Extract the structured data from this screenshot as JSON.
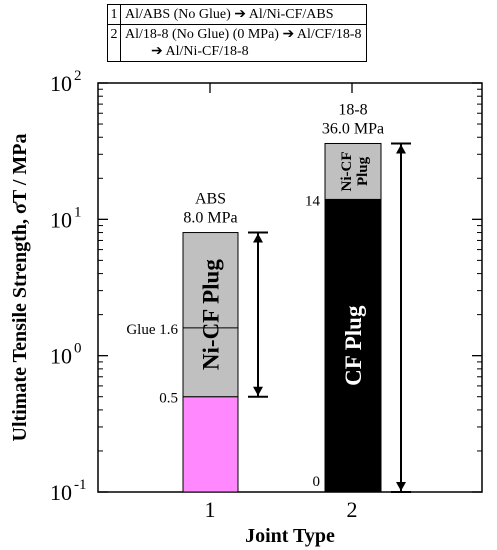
{
  "legend": [
    {
      "num": "1",
      "line1": "Al/ABS (No Glue) ➔ Al/Ni-CF/ABS",
      "line2": ""
    },
    {
      "num": "2",
      "line1": "Al/18-8 (No Glue) (0 MPa) ➔ Al/CF/18-8",
      "line2": "➔ Al/Ni-CF/18-8"
    }
  ],
  "chart_data": {
    "type": "bar",
    "yscale": "log",
    "xlabel": "Joint Type",
    "ylabel": "Ultimate Tensile Strength, σT / MPa",
    "ylim": [
      0.1,
      100
    ],
    "yticks": [
      {
        "base": "10",
        "exp": "-1",
        "value": 0.1
      },
      {
        "base": "10",
        "exp": "0",
        "value": 1
      },
      {
        "base": "10",
        "exp": "1",
        "value": 10
      },
      {
        "base": "10",
        "exp": "2",
        "value": 100
      }
    ],
    "categories": [
      "1",
      "2"
    ],
    "bars": [
      {
        "category": "1",
        "segments": [
          {
            "from": 0.1,
            "to": 0.5,
            "color": "#ff88ff",
            "label": ""
          },
          {
            "from": 0.5,
            "to": 8.0,
            "color": "#c0c0c0",
            "label": "Ni-CF Plug"
          }
        ],
        "markers": [
          {
            "value": 0.5,
            "label": "0.5"
          },
          {
            "value": 1.6,
            "label": "Glue 1.6",
            "line": true
          }
        ],
        "top_label": [
          "ABS",
          "8.0 MPa"
        ],
        "arrow": {
          "from": 0.5,
          "to": 8.0
        }
      },
      {
        "category": "2",
        "segments": [
          {
            "from": 0.1,
            "to": 14,
            "color": "#000000",
            "label": "CF Plug",
            "label_color": "#ffffff"
          },
          {
            "from": 14,
            "to": 36.0,
            "color": "#c0c0c0",
            "label": "Ni-CF Plug"
          }
        ],
        "markers": [
          {
            "value": 14,
            "label": "14"
          },
          {
            "value": 0.1,
            "label": "0"
          }
        ],
        "top_label": [
          "18-8",
          "36.0 MPa"
        ],
        "arrow": {
          "from": 0.1,
          "to": 36.0
        }
      }
    ]
  }
}
